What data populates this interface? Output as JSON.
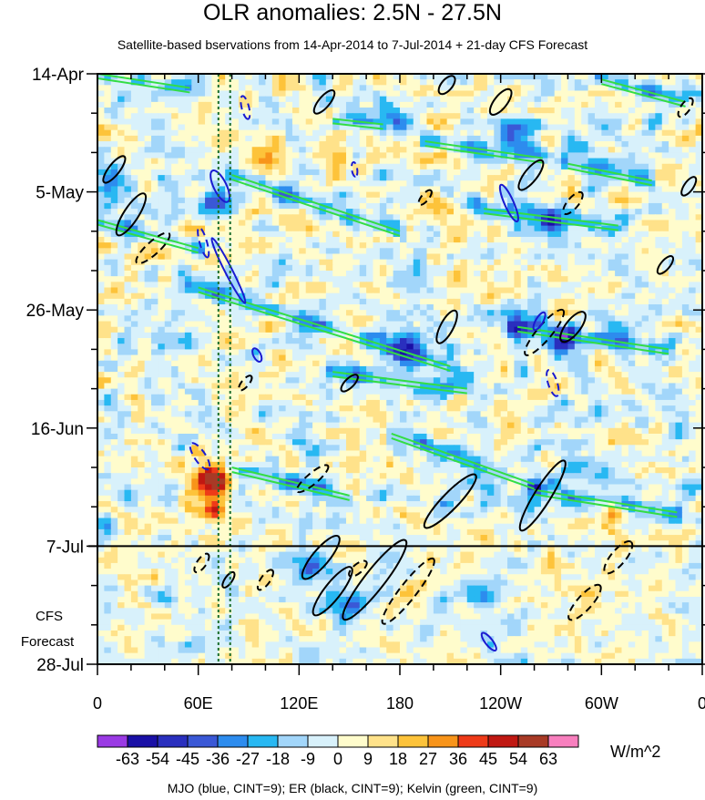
{
  "chart_data": {
    "type": "heatmap",
    "title": "OLR anomalies: 2.5N - 27.5N",
    "subtitle": "Satellite-based bservations from 14-Apr-2014 to 7-Jul-2014 + 21-day CFS Forecast",
    "note": "MJO (blue, CINT=9); ER (black, CINT=9); Kelvin (green, CINT=9)",
    "x_tick_labels": [
      {
        "lon": 0,
        "label": "0"
      },
      {
        "lon": 60,
        "label": "60E"
      },
      {
        "lon": 120,
        "label": "120E"
      },
      {
        "lon": 180,
        "label": "180"
      },
      {
        "lon": 240,
        "label": "120W"
      },
      {
        "lon": 300,
        "label": "60W"
      },
      {
        "lon": 360,
        "label": "0"
      }
    ],
    "y_tick_labels": [
      {
        "day": 0,
        "label": "14-Apr"
      },
      {
        "day": 21,
        "label": "5-May"
      },
      {
        "day": 42,
        "label": "26-May"
      },
      {
        "day": 63,
        "label": "16-Jun"
      },
      {
        "day": 84,
        "label": "7-Jul"
      },
      {
        "day": 105,
        "label": "28-Jul"
      }
    ],
    "forecast_label_lines": [
      "CFS",
      "Forecast"
    ],
    "xlim": [
      0,
      360
    ],
    "ylim_days": [
      0,
      105
    ],
    "observation_end_day": 84,
    "reference_lines_lon": [
      72,
      79
    ],
    "colorbar": {
      "labels": [
        "-63",
        "-54",
        "-45",
        "-36",
        "-27",
        "-18",
        "-9",
        "0",
        "9",
        "18",
        "27",
        "36",
        "45",
        "54",
        "63"
      ],
      "colors": [
        "#9a3ae4",
        "#1a10a6",
        "#2a2fbe",
        "#3a58d6",
        "#2d8cee",
        "#28b8f2",
        "#a2d6fa",
        "#d8f1fb",
        "#fffccc",
        "#ffe28a",
        "#fdc33a",
        "#f8941a",
        "#ee3a18",
        "#c01812",
        "#a83a26",
        "#f87fbe"
      ],
      "units": "W/m^2"
    },
    "features": {
      "kelvin": [
        {
          "lon": [
            0,
            55
          ],
          "day": [
            0,
            2.5
          ]
        },
        {
          "lon": [
            140,
            170
          ],
          "day": [
            8,
            9
          ]
        },
        {
          "lon": [
            300,
            350
          ],
          "day": [
            1,
            5
          ]
        },
        {
          "lon": [
            80,
            180
          ],
          "day": [
            18,
            28
          ]
        },
        {
          "lon": [
            230,
            310
          ],
          "day": [
            24,
            27
          ]
        },
        {
          "lon": [
            195,
            265
          ],
          "day": [
            12,
            15
          ]
        },
        {
          "lon": [
            0,
            60
          ],
          "day": [
            26,
            31
          ]
        },
        {
          "lon": [
            60,
            210
          ],
          "day": [
            38,
            52
          ]
        },
        {
          "lon": [
            250,
            340
          ],
          "day": [
            45,
            49
          ]
        },
        {
          "lon": [
            175,
            260
          ],
          "day": [
            64,
            73
          ]
        },
        {
          "lon": [
            260,
            345
          ],
          "day": [
            74,
            78
          ]
        },
        {
          "lon": [
            280,
            330
          ],
          "day": [
            16,
            19
          ]
        },
        {
          "lon": [
            140,
            220
          ],
          "day": [
            53,
            56
          ]
        },
        {
          "lon": [
            80,
            150
          ],
          "day": [
            70,
            75
          ]
        }
      ],
      "mjo": [
        {
          "lon": 78,
          "day": 35,
          "ax": 40,
          "ay": 4,
          "rot": 63,
          "dash": false
        },
        {
          "lon": 73,
          "day": 20,
          "ax": 19,
          "ay": 7,
          "rot": 64,
          "dash": false
        },
        {
          "lon": 88,
          "day": 6,
          "ax": 13,
          "ay": 4,
          "rot": 76,
          "dash": true
        },
        {
          "lon": 63,
          "day": 30,
          "ax": 17,
          "ay": 4,
          "rot": 74,
          "dash": true
        },
        {
          "lon": 95,
          "day": 50,
          "ax": 8,
          "ay": 4,
          "rot": 63,
          "dash": false
        },
        {
          "lon": 61,
          "day": 68,
          "ax": 17,
          "ay": 6,
          "rot": 56,
          "dash": true
        },
        {
          "lon": 245,
          "day": 23,
          "ax": 22,
          "ay": 5,
          "rot": 66,
          "dash": false
        },
        {
          "lon": 263,
          "day": 44,
          "ax": 11,
          "ay": 4,
          "rot": -60,
          "dash": false
        },
        {
          "lon": 271,
          "day": 55,
          "ax": 15,
          "ay": 5,
          "rot": 72,
          "dash": true
        },
        {
          "lon": 233,
          "day": 101,
          "ax": 12,
          "ay": 4,
          "rot": 52,
          "dash": false
        },
        {
          "lon": 153,
          "day": 17,
          "ax": 8,
          "ay": 3,
          "rot": 82,
          "dash": true
        }
      ],
      "er": [
        {
          "lon": 165,
          "day": 90,
          "ax": 55,
          "ay": 11,
          "rot": -52,
          "dash": false
        },
        {
          "lon": 185,
          "day": 92,
          "ax": 45,
          "ay": 9,
          "rot": -52,
          "dash": true
        },
        {
          "lon": 140,
          "day": 92,
          "ax": 33,
          "ay": 9,
          "rot": -52,
          "dash": false
        },
        {
          "lon": 210,
          "day": 76,
          "ax": 40,
          "ay": 9,
          "rot": -46,
          "dash": false
        },
        {
          "lon": 265,
          "day": 75,
          "ax": 45,
          "ay": 9,
          "rot": -58,
          "dash": false
        },
        {
          "lon": 290,
          "day": 94,
          "ax": 25,
          "ay": 8,
          "rot": -48,
          "dash": true
        },
        {
          "lon": 128,
          "day": 72,
          "ax": 22,
          "ay": 6,
          "rot": -40,
          "dash": true
        },
        {
          "lon": 155,
          "day": 88,
          "ax": 12,
          "ay": 5,
          "rot": -40,
          "dash": true
        },
        {
          "lon": 20,
          "day": 25,
          "ax": 27,
          "ay": 8,
          "rot": -57,
          "dash": false
        },
        {
          "lon": 10,
          "day": 17,
          "ax": 18,
          "ay": 6,
          "rot": -52,
          "dash": false
        },
        {
          "lon": 33,
          "day": 31,
          "ax": 24,
          "ay": 7,
          "rot": -42,
          "dash": true
        },
        {
          "lon": 208,
          "day": 45,
          "ax": 20,
          "ay": 7,
          "rot": -62,
          "dash": false
        },
        {
          "lon": 240,
          "day": 5,
          "ax": 17,
          "ay": 7,
          "rot": -52,
          "dash": false
        },
        {
          "lon": 258,
          "day": 18,
          "ax": 20,
          "ay": 7,
          "rot": -52,
          "dash": false
        },
        {
          "lon": 283,
          "day": 23,
          "ax": 15,
          "ay": 6,
          "rot": -50,
          "dash": true
        },
        {
          "lon": 266,
          "day": 46,
          "ax": 32,
          "ay": 8,
          "rot": -50,
          "dash": true
        },
        {
          "lon": 283,
          "day": 45,
          "ax": 20,
          "ay": 8,
          "rot": -52,
          "dash": false
        },
        {
          "lon": 150,
          "day": 55,
          "ax": 12,
          "ay": 5,
          "rot": -45,
          "dash": false
        },
        {
          "lon": 208,
          "day": 2,
          "ax": 12,
          "ay": 6,
          "rot": -50,
          "dash": false
        },
        {
          "lon": 338,
          "day": 34,
          "ax": 12,
          "ay": 5,
          "rot": -50,
          "dash": false
        },
        {
          "lon": 352,
          "day": 20,
          "ax": 12,
          "ay": 5,
          "rot": -55,
          "dash": false
        },
        {
          "lon": 350,
          "day": 6,
          "ax": 12,
          "ay": 5,
          "rot": -55,
          "dash": true
        },
        {
          "lon": 135,
          "day": 5,
          "ax": 16,
          "ay": 6,
          "rot": -50,
          "dash": false
        },
        {
          "lon": 88,
          "day": 55,
          "ax": 10,
          "ay": 4,
          "rot": -50,
          "dash": true
        },
        {
          "lon": 100,
          "day": 90,
          "ax": 13,
          "ay": 5,
          "rot": -55,
          "dash": true
        },
        {
          "lon": 133,
          "day": 86,
          "ax": 30,
          "ay": 9,
          "rot": -50,
          "dash": false
        },
        {
          "lon": 195,
          "day": 22,
          "ax": 10,
          "ay": 4,
          "rot": -50,
          "dash": true
        },
        {
          "lon": 310,
          "day": 86,
          "ax": 22,
          "ay": 8,
          "rot": -50,
          "dash": true
        },
        {
          "lon": 62,
          "day": 87,
          "ax": 12,
          "ay": 5,
          "rot": -55,
          "dash": true
        },
        {
          "lon": 78,
          "day": 90,
          "ax": 10,
          "ay": 4,
          "rot": -55,
          "dash": false
        }
      ],
      "convection_hotspots": [
        {
          "lon": 72,
          "day": 72,
          "r": 3,
          "v": 50
        },
        {
          "lon": 70,
          "day": 78,
          "r": 2.5,
          "v": 40
        },
        {
          "lon": 63,
          "day": 73,
          "r": 3,
          "v": 28
        },
        {
          "lon": 95,
          "day": 14,
          "r": 3.5,
          "v": 24
        },
        {
          "lon": 145,
          "day": 17,
          "r": 3,
          "v": 22
        },
        {
          "lon": 205,
          "day": 11,
          "r": 3,
          "v": 20
        },
        {
          "lon": 70,
          "day": 23,
          "r": 2.5,
          "v": -45
        },
        {
          "lon": 7,
          "day": 20,
          "r": 3,
          "v": -38
        },
        {
          "lon": 180,
          "day": 8,
          "r": 3,
          "v": -30
        },
        {
          "lon": 270,
          "day": 26,
          "r": 3,
          "v": -35
        },
        {
          "lon": 275,
          "day": 48,
          "r": 3,
          "v": -38
        },
        {
          "lon": 185,
          "day": 49,
          "r": 3,
          "v": -40
        },
        {
          "lon": 127,
          "day": 88,
          "r": 3,
          "v": -42
        },
        {
          "lon": 148,
          "day": 95,
          "r": 3,
          "v": -38
        },
        {
          "lon": 230,
          "day": 92,
          "r": 3,
          "v": -32
        },
        {
          "lon": 245,
          "day": 10,
          "r": 3,
          "v": -32
        },
        {
          "lon": 40,
          "day": 48,
          "r": 3,
          "v": -28
        },
        {
          "lon": 295,
          "day": 94,
          "r": 3,
          "v": 26
        },
        {
          "lon": 305,
          "day": 78,
          "r": 3,
          "v": 30
        },
        {
          "lon": 250,
          "day": 44,
          "r": 3,
          "v": -30
        }
      ]
    }
  }
}
